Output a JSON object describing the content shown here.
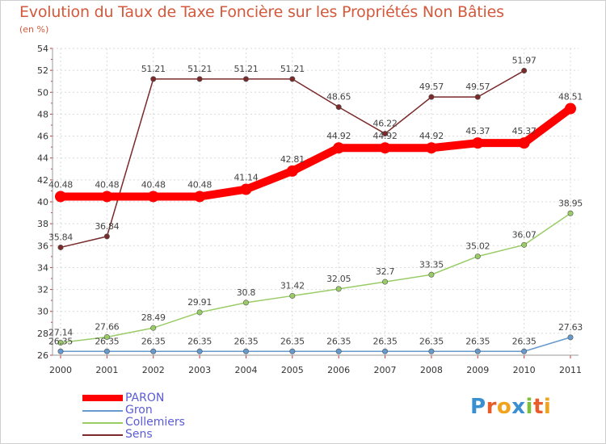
{
  "chart_data": {
    "type": "line",
    "title": "Evolution du Taux de Taxe Foncière sur les Propriétés Non Bâties",
    "ylabel": "(en %)",
    "xlabel": "",
    "categories": [
      "2000",
      "2001",
      "2002",
      "2003",
      "2004",
      "2005",
      "2006",
      "2007",
      "2008",
      "2009",
      "2010",
      "2011"
    ],
    "ylim": [
      26,
      54
    ],
    "yticks": [
      26,
      28,
      30,
      32,
      34,
      36,
      38,
      40,
      42,
      44,
      46,
      48,
      50,
      52,
      54
    ],
    "grid": true,
    "series": [
      {
        "name": "PARON",
        "color": "#ff0000",
        "values": [
          40.48,
          40.48,
          40.48,
          40.48,
          41.14,
          42.81,
          44.92,
          44.92,
          44.92,
          45.37,
          45.37,
          48.51
        ],
        "labels": [
          "40.48",
          "40.48",
          "40.48",
          "40.48",
          "41.14",
          "42.81",
          "44.92",
          "44.92",
          "44.92",
          "45.37",
          "45.37",
          "48.51"
        ]
      },
      {
        "name": "Gron",
        "color": "#6699cc",
        "values": [
          26.35,
          26.35,
          26.35,
          26.35,
          26.35,
          26.35,
          26.35,
          26.35,
          26.35,
          26.35,
          26.35,
          27.63
        ],
        "labels": [
          "26.35",
          "26.35",
          "26.35",
          "26.35",
          "26.35",
          "26.35",
          "26.35",
          "26.35",
          "26.35",
          "26.35",
          "26.35",
          "27.63"
        ]
      },
      {
        "name": "Collemiers",
        "color": "#99cc66",
        "values": [
          27.14,
          27.66,
          28.49,
          29.91,
          30.8,
          31.42,
          32.05,
          32.7,
          33.35,
          35.02,
          36.07,
          38.95
        ],
        "labels": [
          "27.14",
          "27.66",
          "28.49",
          "29.91",
          "30.8",
          "31.42",
          "32.05",
          "32.7",
          "33.35",
          "35.02",
          "36.07",
          "38.95"
        ]
      },
      {
        "name": "Sens",
        "color": "#7a2a2a",
        "values": [
          35.84,
          36.84,
          51.21,
          51.21,
          51.21,
          51.21,
          48.65,
          46.22,
          49.57,
          49.57,
          51.97,
          null
        ],
        "labels": [
          "35.84",
          "36.84",
          "51.21",
          "51.21",
          "51.21",
          "51.21",
          "48.65",
          "46.22",
          "49.57",
          "49.57",
          "51.97",
          null
        ]
      }
    ]
  },
  "legend": {
    "items": [
      {
        "label": "PARON"
      },
      {
        "label": "Gron"
      },
      {
        "label": "Collemiers"
      },
      {
        "label": "Sens"
      }
    ]
  },
  "logo": {
    "text": "Proxiti"
  }
}
